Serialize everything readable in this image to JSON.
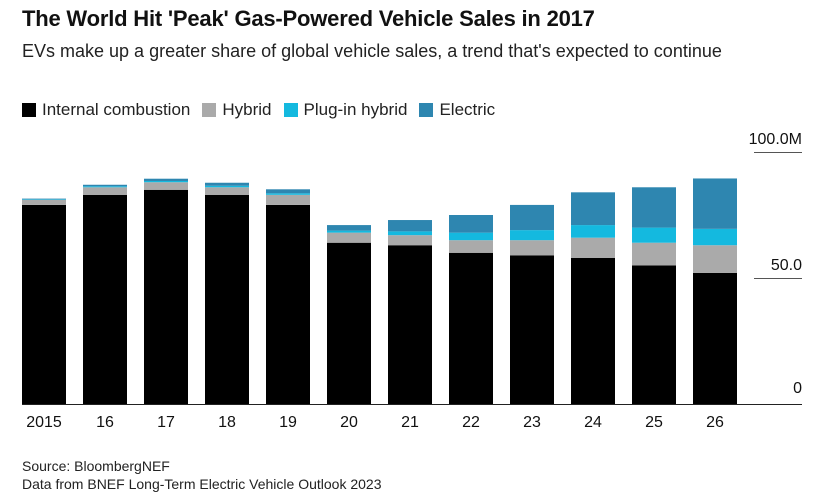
{
  "title": "The World Hit 'Peak' Gas-Powered Vehicle Sales in 2017",
  "subtitle": "EVs make up a greater share of global vehicle sales, a trend that's expected to continue",
  "footer": {
    "source": "Source: BloombergNEF",
    "note": "Data from BNEF Long-Term Electric Vehicle Outlook 2023"
  },
  "chart_data": {
    "type": "bar",
    "stacked": true,
    "title": "The World Hit 'Peak' Gas-Powered Vehicle Sales in 2017",
    "subtitle": "EVs make up a greater share of global vehicle sales, a trend that's expected to continue",
    "xlabel": "",
    "ylabel": "",
    "ylim": [
      0,
      100
    ],
    "yticks": [
      {
        "value": 0,
        "label": "0"
      },
      {
        "value": 50,
        "label": "50.0"
      },
      {
        "value": 100,
        "label": "100.0M"
      }
    ],
    "grid": false,
    "legend_position": "top-left",
    "categories": [
      "2015",
      "16",
      "17",
      "18",
      "19",
      "20",
      "21",
      "22",
      "23",
      "24",
      "25",
      "26"
    ],
    "series": [
      {
        "name": "Internal combustion",
        "color": "#000000",
        "values": [
          79,
          83,
          85,
          83,
          79,
          64,
          63,
          60,
          59,
          58,
          55,
          52
        ]
      },
      {
        "name": "Hybrid",
        "color": "#aaaaaa",
        "values": [
          2,
          3,
          3,
          3,
          4,
          4,
          4,
          5,
          6,
          8,
          9,
          11
        ]
      },
      {
        "name": "Plug-in hybrid",
        "color": "#14b9df",
        "values": [
          0.2,
          0.4,
          0.5,
          0.6,
          0.6,
          0.8,
          1.5,
          3,
          4,
          5,
          6,
          6.5
        ]
      },
      {
        "name": "Electric",
        "color": "#2e86b0",
        "values": [
          0.3,
          0.6,
          0.9,
          1.2,
          1.6,
          2.2,
          4.5,
          7,
          10,
          13,
          16,
          20
        ]
      }
    ]
  }
}
